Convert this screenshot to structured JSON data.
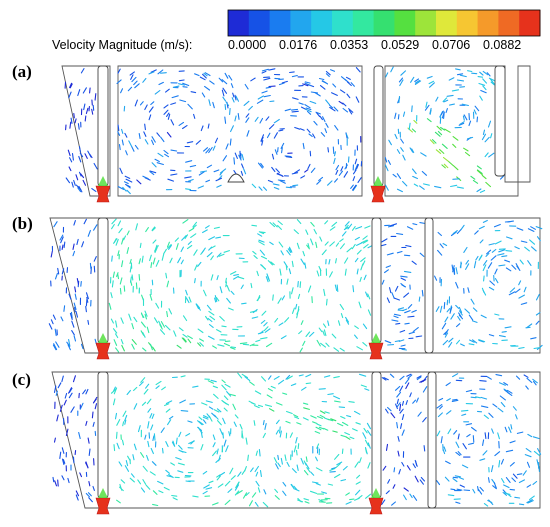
{
  "legend": {
    "title": "Velocity Magnitude (m/s):",
    "ticks": [
      "0.0000",
      "0.0176",
      "0.0353",
      "0.0529",
      "0.0706",
      "0.0882"
    ],
    "colors": [
      "#1e2bd6",
      "#1652e6",
      "#1a7cf0",
      "#22a6ee",
      "#25c8e6",
      "#2fe0cc",
      "#33e8a0",
      "#35e070",
      "#55e040",
      "#9de43a",
      "#dfe83a",
      "#f6c632",
      "#f59a2a",
      "#ef6a24",
      "#e6321c"
    ]
  },
  "panels": [
    {
      "label": "(a)"
    },
    {
      "label": "(b)"
    },
    {
      "label": "(c)"
    }
  ]
}
